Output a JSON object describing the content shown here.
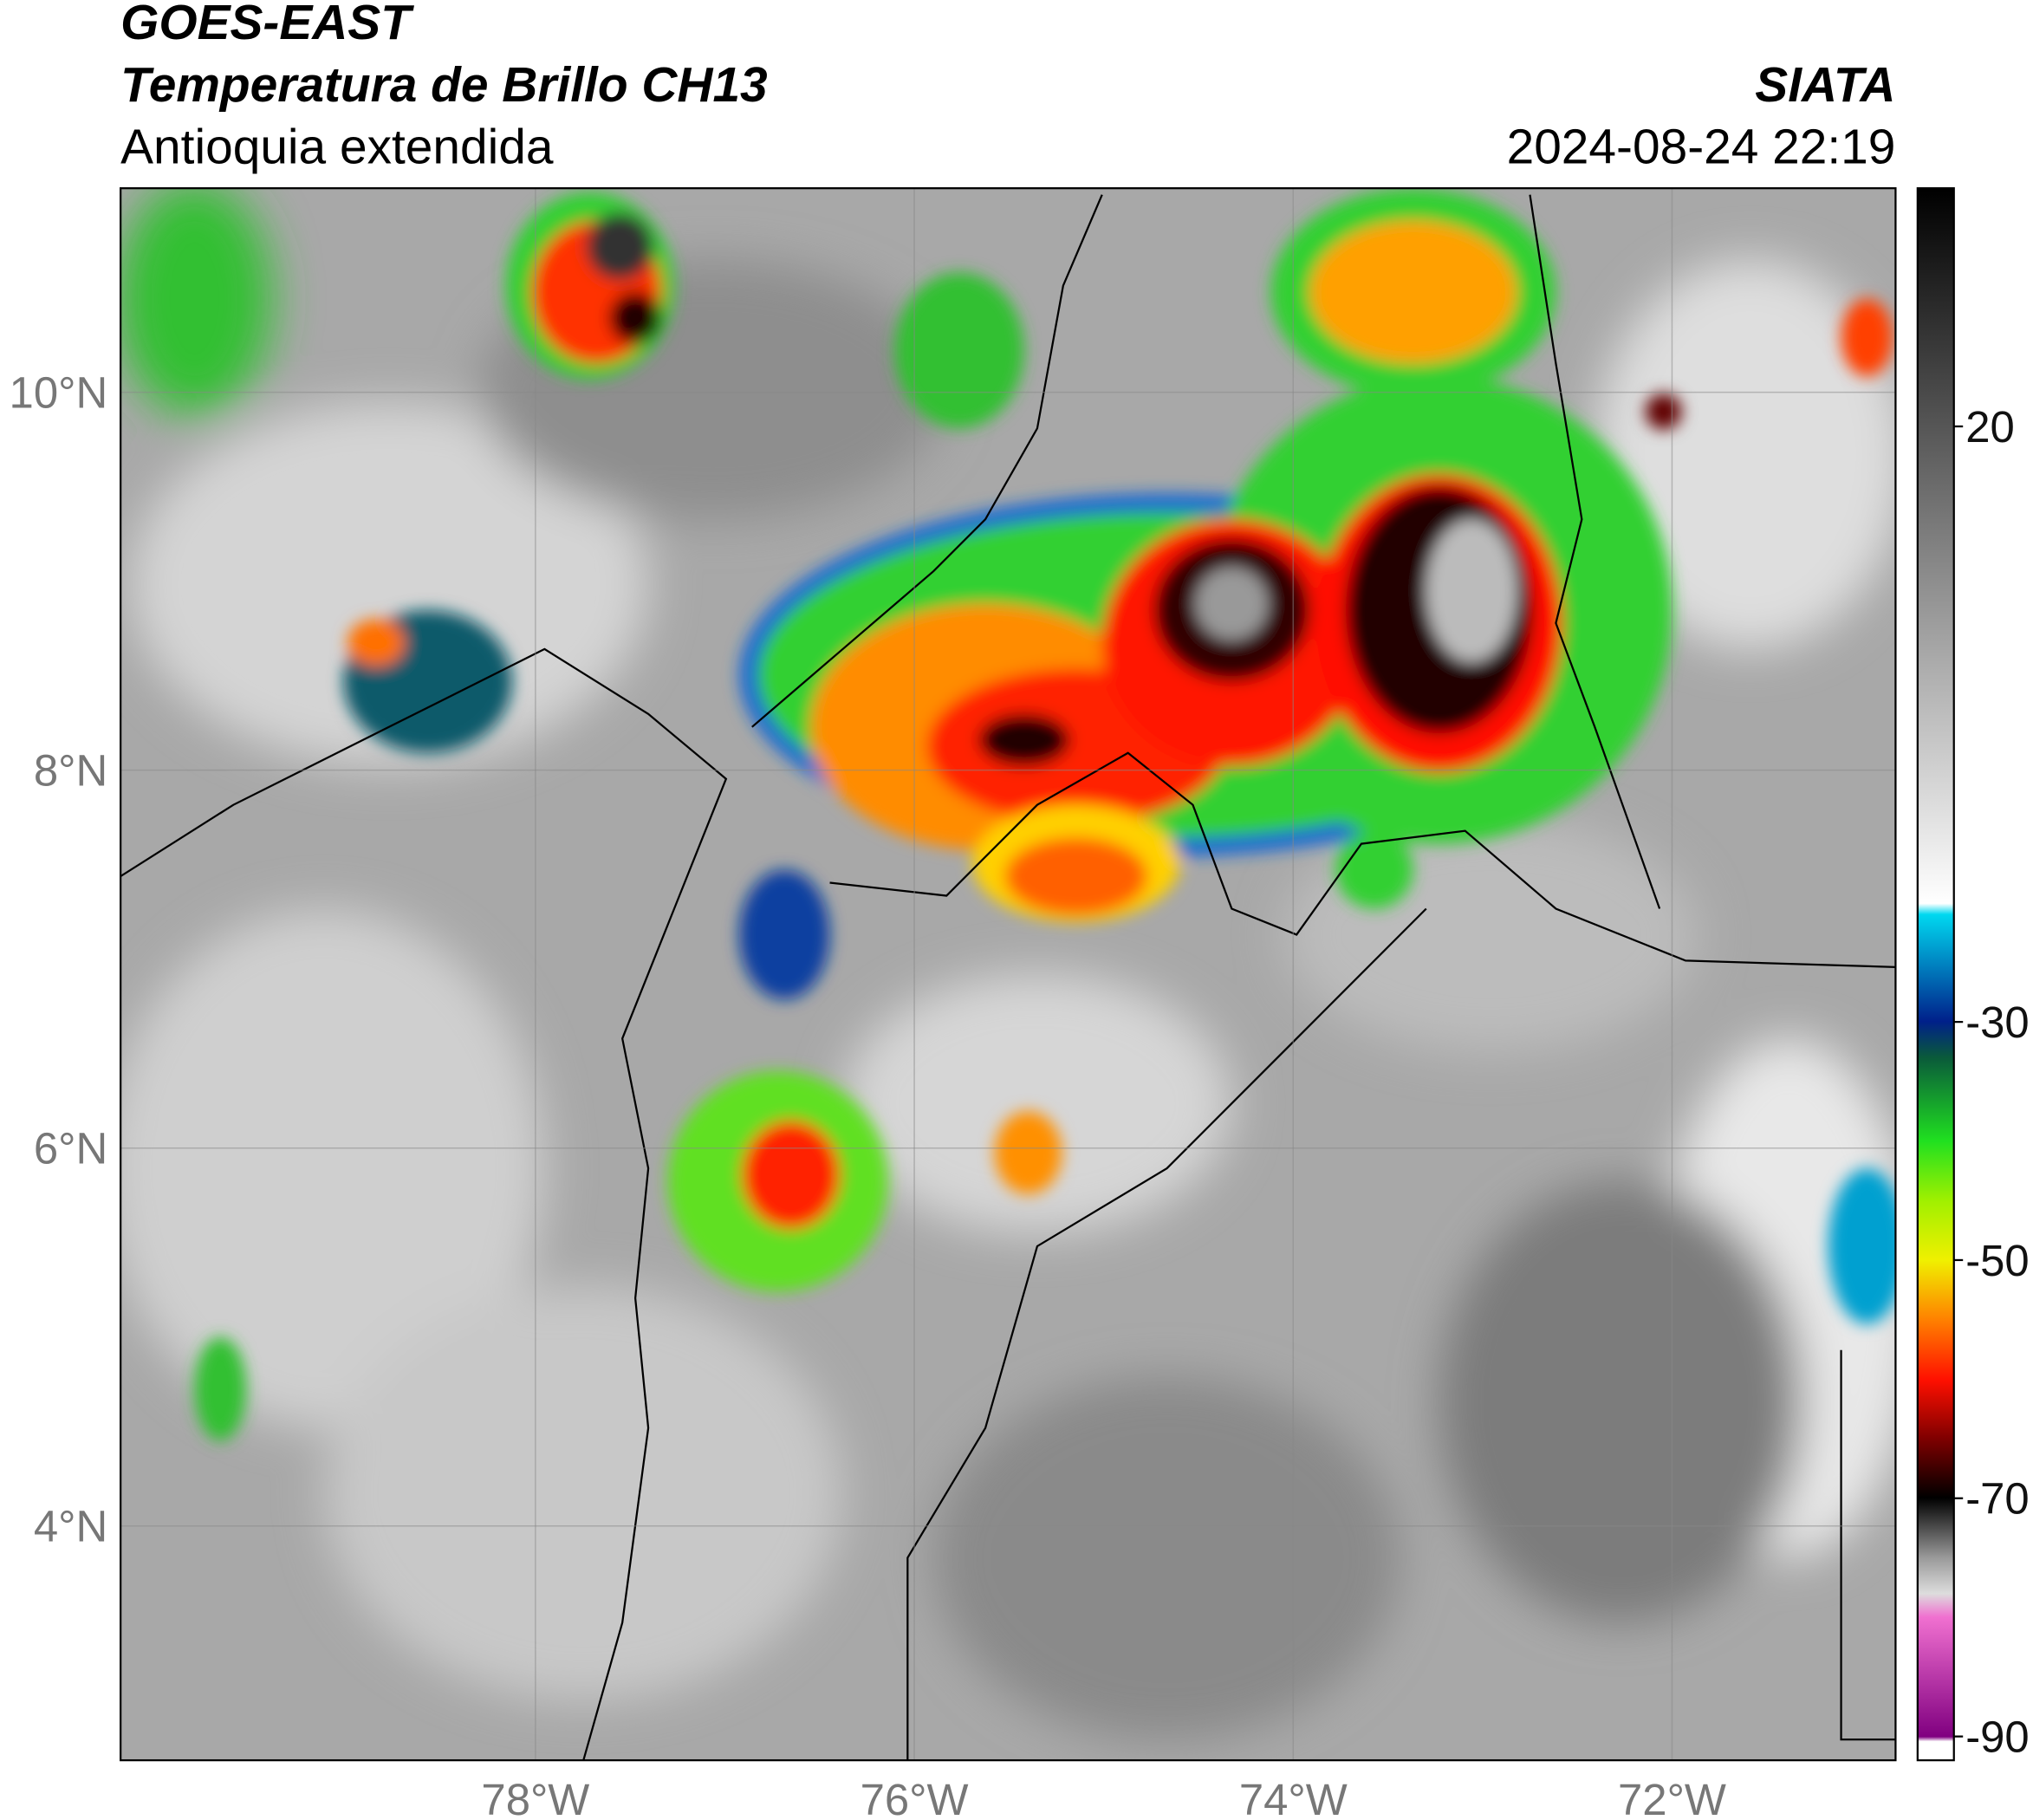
{
  "header": {
    "title": "GOES-EAST",
    "subtitle": "Temperatura de Brillo CH13",
    "region": "Antioquia extendida",
    "agency": "SIATA",
    "timestamp": "2024-08-24 22:19"
  },
  "map": {
    "latlim": [
      2.76,
      11.08
    ],
    "lonlim": [
      -80.19,
      -70.82
    ],
    "lat_ticks": [
      {
        "value": 10,
        "label": "10°N"
      },
      {
        "value": 8,
        "label": "8°N"
      },
      {
        "value": 6,
        "label": "6°N"
      },
      {
        "value": 4,
        "label": "4°N"
      }
    ],
    "lon_ticks": [
      {
        "value": -78,
        "label": "78°W"
      },
      {
        "value": -76,
        "label": "76°W"
      },
      {
        "value": -74,
        "label": "74°W"
      },
      {
        "value": -72,
        "label": "72°W"
      }
    ],
    "grid": true
  },
  "colorbar": {
    "lim": [
      -92,
      40
    ],
    "ticks": [
      20,
      -30,
      -50,
      -70,
      -90
    ]
  }
}
